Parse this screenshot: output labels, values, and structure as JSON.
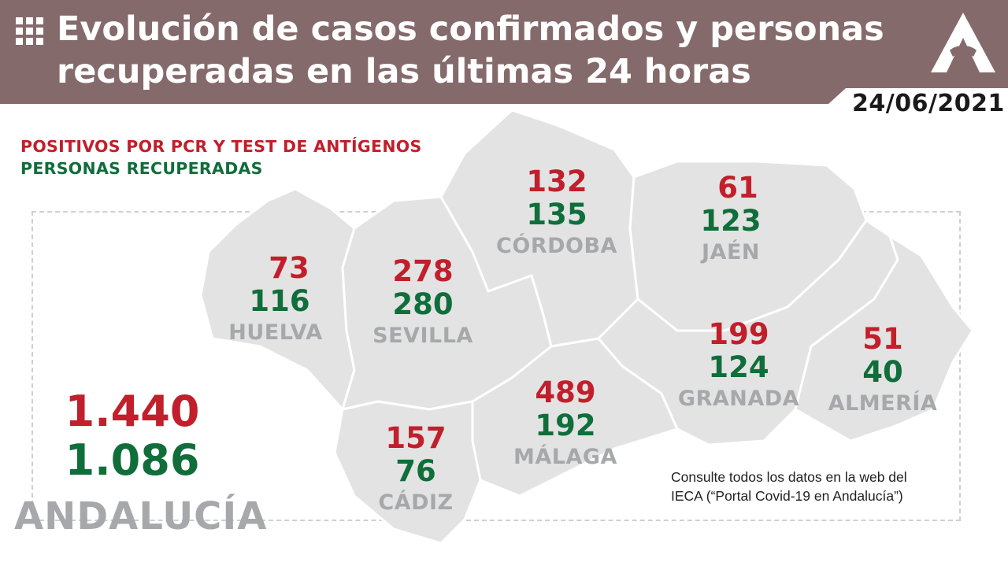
{
  "header": {
    "icon": "grid-icon",
    "title_line1": "Evolución de casos confirmados y personas",
    "title_line2": "recuperadas en las últimas 24 horas",
    "logo": "junta-andalucia-logo",
    "date": "24/06/2021",
    "background_color": "#856a6c"
  },
  "legend": {
    "positives": "POSITIVOS POR PCR Y TEST DE ANTÍGENOS",
    "recovered": "PERSONAS RECUPERADAS",
    "positives_color": "#c11f2b",
    "recovered_color": "#0f6e3a"
  },
  "provinces": {
    "cordoba": {
      "name": "CÓRDOBA",
      "positives": "132",
      "recovered": "135"
    },
    "jaen": {
      "name": "JAÉN",
      "positives": "61",
      "recovered": "123"
    },
    "huelva": {
      "name": "HUELVA",
      "positives": "73",
      "recovered": "116"
    },
    "sevilla": {
      "name": "SEVILLA",
      "positives": "278",
      "recovered": "280"
    },
    "granada": {
      "name": "GRANADA",
      "positives": "199",
      "recovered": "124"
    },
    "almeria": {
      "name": "ALMERÍA",
      "positives": "51",
      "recovered": "40"
    },
    "malaga": {
      "name": "MÁLAGA",
      "positives": "489",
      "recovered": "192"
    },
    "cadiz": {
      "name": "CÁDIZ",
      "positives": "157",
      "recovered": "76"
    }
  },
  "total": {
    "name": "ANDALUCÍA",
    "positives": "1.440",
    "recovered": "1.086"
  },
  "note": {
    "line1": "Consulte todos los datos en la web del",
    "line2": "IECA (“Portal Covid-19 en Andalucía”)"
  }
}
